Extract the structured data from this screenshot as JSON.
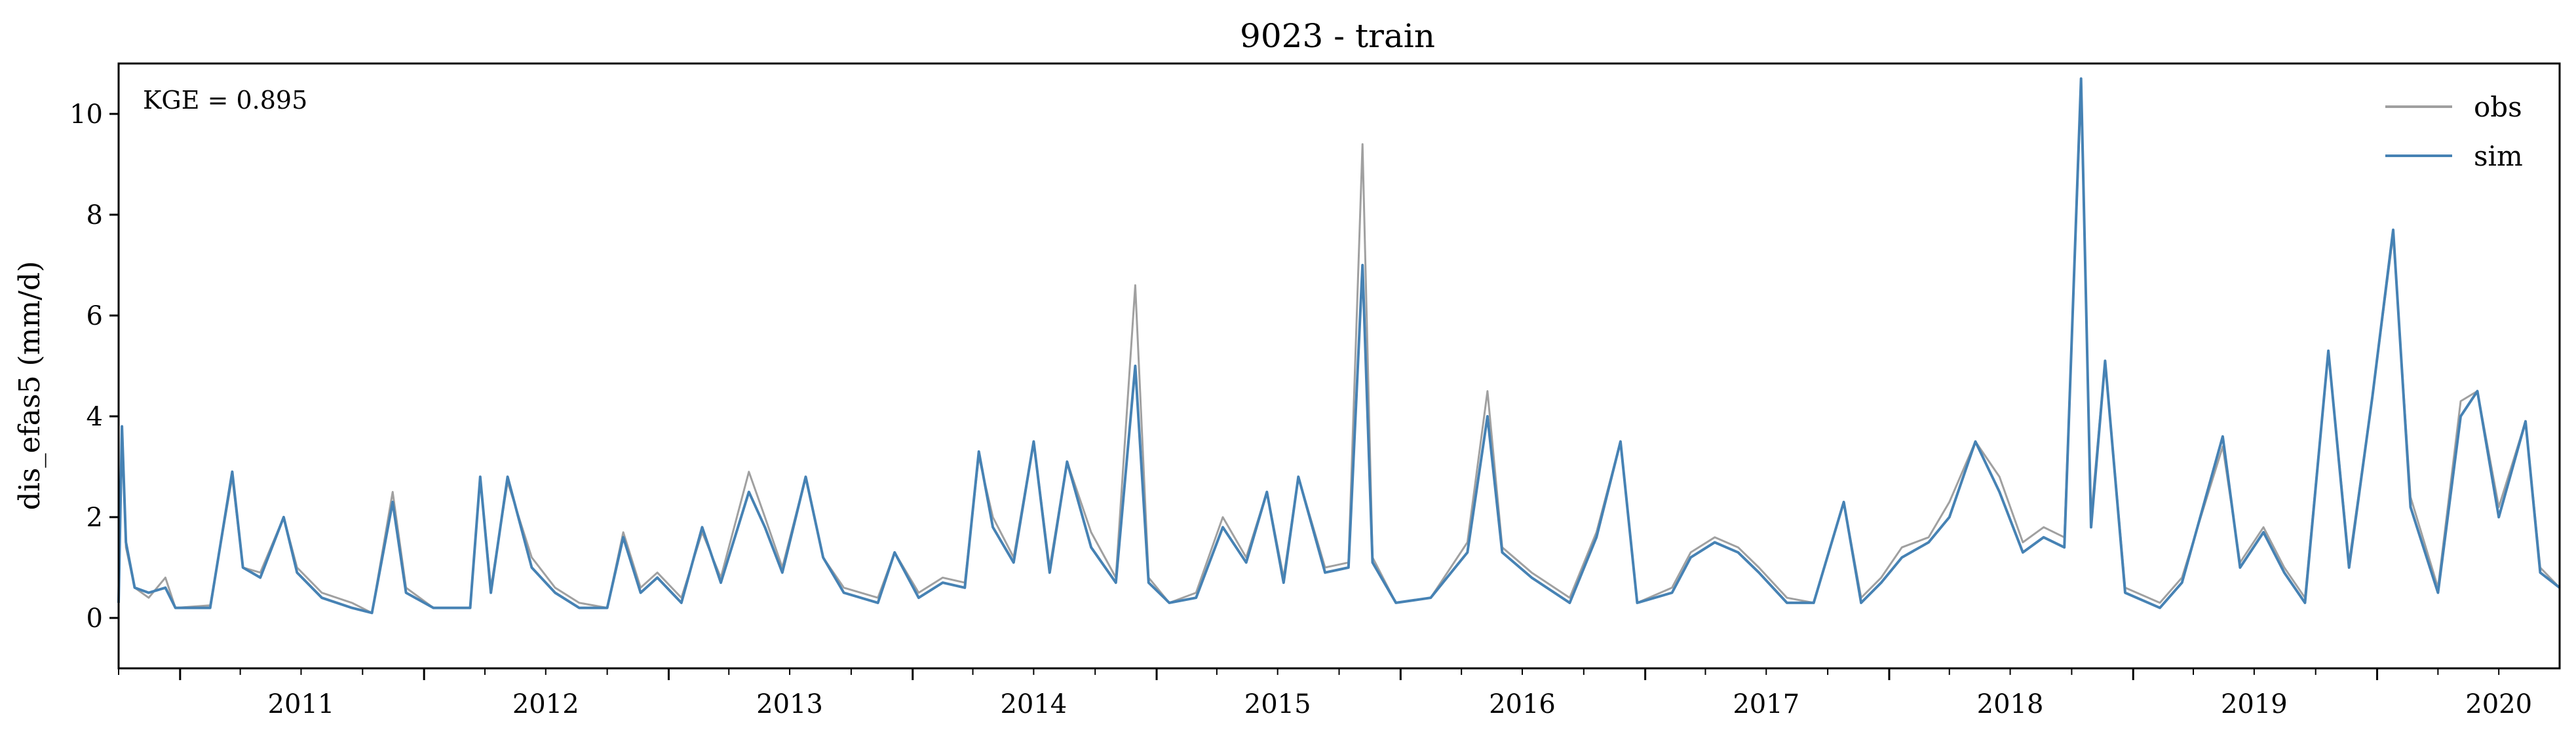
{
  "chart_data": {
    "type": "line",
    "title": "9023 - train",
    "xlabel": "",
    "ylabel": "dis_efas5 (mm/d)",
    "annotation": "KGE = 0.895",
    "xlim": [
      "2010-10-01",
      "2020-09-30"
    ],
    "ylim": [
      -1,
      11
    ],
    "xticks": [
      "2011",
      "2012",
      "2013",
      "2014",
      "2015",
      "2016",
      "2017",
      "2018",
      "2019",
      "2020"
    ],
    "yticks": [
      "0",
      "2",
      "4",
      "6",
      "8",
      "10"
    ],
    "grid": false,
    "legend": "top-right",
    "series": [
      {
        "name": "obs",
        "color": "#a0a0a0",
        "points": [
          [
            "2010-10-01",
            0.4
          ],
          [
            "2010-10-06",
            3.8
          ],
          [
            "2010-10-12",
            1.4
          ],
          [
            "2010-10-25",
            0.6
          ],
          [
            "2010-11-15",
            0.4
          ],
          [
            "2010-12-10",
            0.8
          ],
          [
            "2010-12-25",
            0.2
          ],
          [
            "2011-02-15",
            0.25
          ],
          [
            "2011-03-20",
            2.8
          ],
          [
            "2011-04-05",
            1.0
          ],
          [
            "2011-05-01",
            0.9
          ],
          [
            "2011-06-05",
            2.0
          ],
          [
            "2011-06-25",
            1.0
          ],
          [
            "2011-08-01",
            0.5
          ],
          [
            "2011-09-15",
            0.3
          ],
          [
            "2011-10-15",
            0.1
          ],
          [
            "2011-11-15",
            2.5
          ],
          [
            "2011-12-05",
            0.6
          ],
          [
            "2012-01-15",
            0.2
          ],
          [
            "2012-03-10",
            0.2
          ],
          [
            "2012-03-25",
            2.8
          ],
          [
            "2012-04-10",
            0.6
          ],
          [
            "2012-05-05",
            2.7
          ],
          [
            "2012-06-10",
            1.2
          ],
          [
            "2012-07-15",
            0.6
          ],
          [
            "2012-08-20",
            0.3
          ],
          [
            "2012-10-01",
            0.2
          ],
          [
            "2012-10-25",
            1.7
          ],
          [
            "2012-11-20",
            0.6
          ],
          [
            "2012-12-15",
            0.9
          ],
          [
            "2013-01-20",
            0.4
          ],
          [
            "2013-02-20",
            1.7
          ],
          [
            "2013-03-20",
            0.8
          ],
          [
            "2013-05-01",
            2.9
          ],
          [
            "2013-05-25",
            2.0
          ],
          [
            "2013-06-20",
            1.0
          ],
          [
            "2013-07-25",
            2.8
          ],
          [
            "2013-08-20",
            1.2
          ],
          [
            "2013-09-20",
            0.6
          ],
          [
            "2013-11-10",
            0.4
          ],
          [
            "2013-12-05",
            1.3
          ],
          [
            "2014-01-10",
            0.5
          ],
          [
            "2014-02-15",
            0.8
          ],
          [
            "2014-03-20",
            0.7
          ],
          [
            "2014-04-10",
            3.2
          ],
          [
            "2014-05-01",
            2.0
          ],
          [
            "2014-06-01",
            1.2
          ],
          [
            "2014-07-01",
            3.5
          ],
          [
            "2014-07-25",
            1.0
          ],
          [
            "2014-08-20",
            3.1
          ],
          [
            "2014-09-25",
            1.7
          ],
          [
            "2014-11-01",
            0.8
          ],
          [
            "2014-11-30",
            6.6
          ],
          [
            "2014-12-20",
            0.8
          ],
          [
            "2015-01-20",
            0.3
          ],
          [
            "2015-03-01",
            0.5
          ],
          [
            "2015-04-10",
            2.0
          ],
          [
            "2015-05-15",
            1.2
          ],
          [
            "2015-06-15",
            2.5
          ],
          [
            "2015-07-10",
            0.8
          ],
          [
            "2015-08-01",
            2.8
          ],
          [
            "2015-09-10",
            1.0
          ],
          [
            "2015-10-15",
            1.1
          ],
          [
            "2015-11-05",
            9.4
          ],
          [
            "2015-11-20",
            1.2
          ],
          [
            "2015-12-25",
            0.3
          ],
          [
            "2016-02-15",
            0.4
          ],
          [
            "2016-04-10",
            1.5
          ],
          [
            "2016-05-10",
            4.5
          ],
          [
            "2016-06-01",
            1.4
          ],
          [
            "2016-07-15",
            0.9
          ],
          [
            "2016-09-10",
            0.4
          ],
          [
            "2016-10-20",
            1.7
          ],
          [
            "2016-11-25",
            3.5
          ],
          [
            "2016-12-20",
            0.3
          ],
          [
            "2017-02-10",
            0.6
          ],
          [
            "2017-03-10",
            1.3
          ],
          [
            "2017-04-15",
            1.6
          ],
          [
            "2017-05-20",
            1.4
          ],
          [
            "2017-06-20",
            1.0
          ],
          [
            "2017-08-01",
            0.4
          ],
          [
            "2017-09-10",
            0.3
          ],
          [
            "2017-10-25",
            2.3
          ],
          [
            "2017-11-20",
            0.4
          ],
          [
            "2017-12-20",
            0.8
          ],
          [
            "2018-01-20",
            1.4
          ],
          [
            "2018-03-01",
            1.6
          ],
          [
            "2018-04-01",
            2.3
          ],
          [
            "2018-05-10",
            3.5
          ],
          [
            "2018-06-15",
            2.8
          ],
          [
            "2018-07-20",
            1.5
          ],
          [
            "2018-08-20",
            1.8
          ],
          [
            "2018-09-20",
            1.6
          ],
          [
            "2018-10-15",
            10.5
          ],
          [
            "2018-10-30",
            2.0
          ],
          [
            "2018-11-20",
            5.1
          ],
          [
            "2018-12-20",
            0.6
          ],
          [
            "2019-02-10",
            0.3
          ],
          [
            "2019-03-15",
            0.8
          ],
          [
            "2019-05-15",
            3.4
          ],
          [
            "2019-06-10",
            1.1
          ],
          [
            "2019-07-15",
            1.8
          ],
          [
            "2019-08-15",
            1.0
          ],
          [
            "2019-09-15",
            0.4
          ],
          [
            "2019-10-20",
            5.3
          ],
          [
            "2019-11-20",
            1.1
          ],
          [
            "2019-12-25",
            4.4
          ],
          [
            "2020-01-25",
            7.6
          ],
          [
            "2020-02-20",
            2.4
          ],
          [
            "2020-04-01",
            0.6
          ],
          [
            "2020-05-05",
            4.3
          ],
          [
            "2020-05-30",
            4.5
          ],
          [
            "2020-07-01",
            2.2
          ],
          [
            "2020-08-10",
            3.9
          ],
          [
            "2020-09-01",
            1.0
          ],
          [
            "2020-09-30",
            0.6
          ]
        ]
      },
      {
        "name": "sim",
        "color": "#4682b4",
        "points": [
          [
            "2010-10-01",
            0.3
          ],
          [
            "2010-10-06",
            3.8
          ],
          [
            "2010-10-12",
            1.5
          ],
          [
            "2010-10-25",
            0.6
          ],
          [
            "2010-11-15",
            0.5
          ],
          [
            "2010-12-10",
            0.6
          ],
          [
            "2010-12-25",
            0.2
          ],
          [
            "2011-02-15",
            0.2
          ],
          [
            "2011-03-20",
            2.9
          ],
          [
            "2011-04-05",
            1.0
          ],
          [
            "2011-05-01",
            0.8
          ],
          [
            "2011-06-05",
            2.0
          ],
          [
            "2011-06-25",
            0.9
          ],
          [
            "2011-08-01",
            0.4
          ],
          [
            "2011-09-15",
            0.2
          ],
          [
            "2011-10-15",
            0.1
          ],
          [
            "2011-11-15",
            2.3
          ],
          [
            "2011-12-05",
            0.5
          ],
          [
            "2012-01-15",
            0.2
          ],
          [
            "2012-03-10",
            0.2
          ],
          [
            "2012-03-25",
            2.8
          ],
          [
            "2012-04-10",
            0.5
          ],
          [
            "2012-05-05",
            2.8
          ],
          [
            "2012-06-10",
            1.0
          ],
          [
            "2012-07-15",
            0.5
          ],
          [
            "2012-08-20",
            0.2
          ],
          [
            "2012-10-01",
            0.2
          ],
          [
            "2012-10-25",
            1.6
          ],
          [
            "2012-11-20",
            0.5
          ],
          [
            "2012-12-15",
            0.8
          ],
          [
            "2013-01-20",
            0.3
          ],
          [
            "2013-02-20",
            1.8
          ],
          [
            "2013-03-20",
            0.7
          ],
          [
            "2013-05-01",
            2.5
          ],
          [
            "2013-05-25",
            1.8
          ],
          [
            "2013-06-20",
            0.9
          ],
          [
            "2013-07-25",
            2.8
          ],
          [
            "2013-08-20",
            1.2
          ],
          [
            "2013-09-20",
            0.5
          ],
          [
            "2013-11-10",
            0.3
          ],
          [
            "2013-12-05",
            1.3
          ],
          [
            "2014-01-10",
            0.4
          ],
          [
            "2014-02-15",
            0.7
          ],
          [
            "2014-03-20",
            0.6
          ],
          [
            "2014-04-10",
            3.3
          ],
          [
            "2014-05-01",
            1.8
          ],
          [
            "2014-06-01",
            1.1
          ],
          [
            "2014-07-01",
            3.5
          ],
          [
            "2014-07-25",
            0.9
          ],
          [
            "2014-08-20",
            3.1
          ],
          [
            "2014-09-25",
            1.4
          ],
          [
            "2014-11-01",
            0.7
          ],
          [
            "2014-11-30",
            5.0
          ],
          [
            "2014-12-20",
            0.7
          ],
          [
            "2015-01-20",
            0.3
          ],
          [
            "2015-03-01",
            0.4
          ],
          [
            "2015-04-10",
            1.8
          ],
          [
            "2015-05-15",
            1.1
          ],
          [
            "2015-06-15",
            2.5
          ],
          [
            "2015-07-10",
            0.7
          ],
          [
            "2015-08-01",
            2.8
          ],
          [
            "2015-09-10",
            0.9
          ],
          [
            "2015-10-15",
            1.0
          ],
          [
            "2015-11-05",
            7.0
          ],
          [
            "2015-11-20",
            1.1
          ],
          [
            "2015-12-25",
            0.3
          ],
          [
            "2016-02-15",
            0.4
          ],
          [
            "2016-04-10",
            1.3
          ],
          [
            "2016-05-10",
            4.0
          ],
          [
            "2016-06-01",
            1.3
          ],
          [
            "2016-07-15",
            0.8
          ],
          [
            "2016-09-10",
            0.3
          ],
          [
            "2016-10-20",
            1.6
          ],
          [
            "2016-11-25",
            3.5
          ],
          [
            "2016-12-20",
            0.3
          ],
          [
            "2017-02-10",
            0.5
          ],
          [
            "2017-03-10",
            1.2
          ],
          [
            "2017-04-15",
            1.5
          ],
          [
            "2017-05-20",
            1.3
          ],
          [
            "2017-06-20",
            0.9
          ],
          [
            "2017-08-01",
            0.3
          ],
          [
            "2017-09-10",
            0.3
          ],
          [
            "2017-10-25",
            2.3
          ],
          [
            "2017-11-20",
            0.3
          ],
          [
            "2017-12-20",
            0.7
          ],
          [
            "2018-01-20",
            1.2
          ],
          [
            "2018-03-01",
            1.5
          ],
          [
            "2018-04-01",
            2.0
          ],
          [
            "2018-05-10",
            3.5
          ],
          [
            "2018-06-15",
            2.5
          ],
          [
            "2018-07-20",
            1.3
          ],
          [
            "2018-08-20",
            1.6
          ],
          [
            "2018-09-20",
            1.4
          ],
          [
            "2018-10-15",
            10.7
          ],
          [
            "2018-10-30",
            1.8
          ],
          [
            "2018-11-20",
            5.1
          ],
          [
            "2018-12-20",
            0.5
          ],
          [
            "2019-02-10",
            0.2
          ],
          [
            "2019-03-15",
            0.7
          ],
          [
            "2019-05-15",
            3.6
          ],
          [
            "2019-06-10",
            1.0
          ],
          [
            "2019-07-15",
            1.7
          ],
          [
            "2019-08-15",
            0.9
          ],
          [
            "2019-09-15",
            0.3
          ],
          [
            "2019-10-20",
            5.3
          ],
          [
            "2019-11-20",
            1.0
          ],
          [
            "2019-12-25",
            4.4
          ],
          [
            "2020-01-25",
            7.7
          ],
          [
            "2020-02-20",
            2.2
          ],
          [
            "2020-04-01",
            0.5
          ],
          [
            "2020-05-05",
            4.0
          ],
          [
            "2020-05-30",
            4.5
          ],
          [
            "2020-07-01",
            2.0
          ],
          [
            "2020-08-10",
            3.9
          ],
          [
            "2020-09-01",
            0.9
          ],
          [
            "2020-09-30",
            0.6
          ]
        ]
      }
    ]
  }
}
